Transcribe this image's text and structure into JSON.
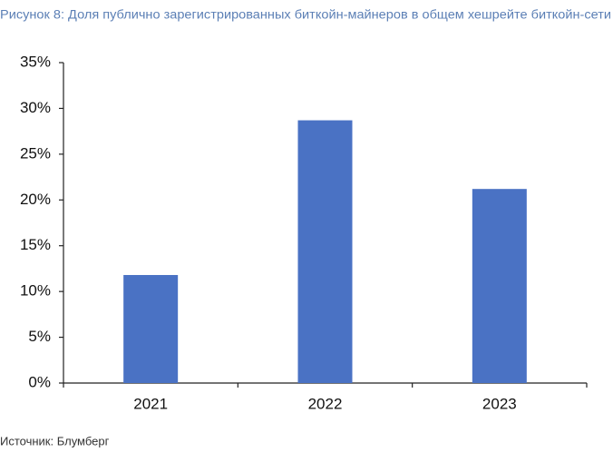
{
  "chart_data": {
    "type": "bar",
    "title": "Рисунок 8: Доля публично зарегистрированных биткойн-майнеров в общем хешрейте биткойн-сети",
    "categories": [
      "2021",
      "2022",
      "2023"
    ],
    "values": [
      11.8,
      28.7,
      21.2
    ],
    "color": "#4a72c4",
    "ylim": [
      0,
      35
    ],
    "yticks": [
      {
        "value": 0,
        "label": "0%"
      },
      {
        "value": 5,
        "label": "5%"
      },
      {
        "value": 10,
        "label": "10%"
      },
      {
        "value": 15,
        "label": "15%"
      },
      {
        "value": 20,
        "label": "20%"
      },
      {
        "value": 25,
        "label": "25%"
      },
      {
        "value": 30,
        "label": "30%"
      },
      {
        "value": 35,
        "label": "35%"
      }
    ],
    "grid": false,
    "source": "Источник: Блумберг"
  }
}
